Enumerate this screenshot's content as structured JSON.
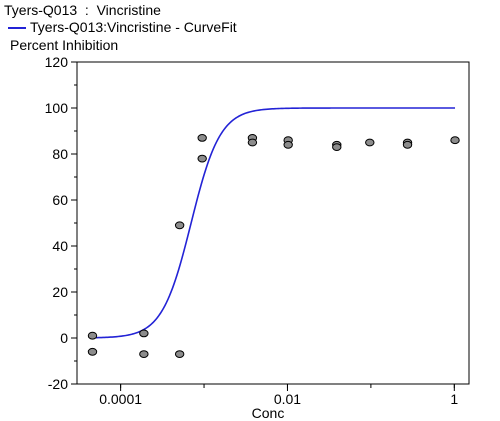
{
  "header": {
    "title": "Tyers-Q013  :  Vincristine",
    "legend_label": "Tyers-Q013:Vincristine - CurveFit",
    "y_axis_title": "Percent Inhibition"
  },
  "chart_data": {
    "type": "scatter",
    "title": "Tyers-Q013  :  Vincristine",
    "ylabel": "Percent Inhibition",
    "xlabel": "Conc",
    "x_scale": "log",
    "xlim": [
      3e-05,
      1.5
    ],
    "ylim": [
      -20,
      120
    ],
    "y_ticks": [
      -20,
      0,
      20,
      40,
      60,
      80,
      100,
      120
    ],
    "x_ticks": [
      0.0001,
      0.01,
      1
    ],
    "x_tick_labels": [
      "0.0001",
      "0.01",
      "1"
    ],
    "grid": false,
    "series": [
      {
        "name": "Tyers-Q013:Vincristine - CurveFit",
        "kind": "line",
        "color": "#2323d6",
        "model": "4PL",
        "bottom": 0,
        "top": 100,
        "ec50": 0.0007,
        "hill": 2.5
      },
      {
        "kind": "points",
        "color": "#8c8c8c",
        "points": [
          [
            4.6e-05,
            1
          ],
          [
            4.6e-05,
            -6
          ],
          [
            0.00019,
            2
          ],
          [
            0.00019,
            -7
          ],
          [
            0.00051,
            49
          ],
          [
            0.00051,
            -7
          ],
          [
            0.00095,
            87
          ],
          [
            0.00095,
            78
          ],
          [
            0.0038,
            87
          ],
          [
            0.0038,
            85
          ],
          [
            0.0102,
            86
          ],
          [
            0.0102,
            84
          ],
          [
            0.039,
            84
          ],
          [
            0.039,
            83
          ],
          [
            0.097,
            85
          ],
          [
            0.275,
            85
          ],
          [
            0.275,
            84
          ],
          [
            1.02,
            86
          ]
        ]
      }
    ]
  }
}
